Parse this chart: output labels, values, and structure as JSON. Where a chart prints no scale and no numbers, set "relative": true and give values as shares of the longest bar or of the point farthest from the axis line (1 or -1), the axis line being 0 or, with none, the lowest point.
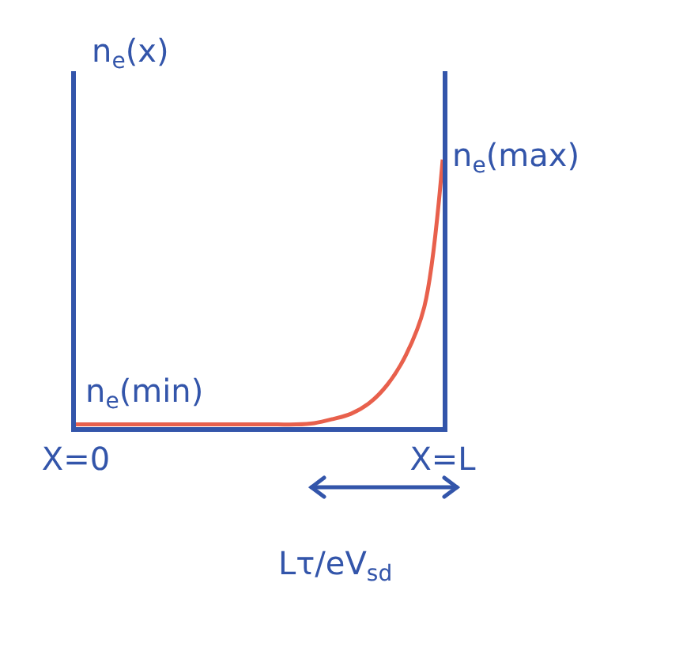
{
  "chart_data": {
    "type": "line",
    "relative": true,
    "ylabel": "n$_{e}$(x)",
    "categories": [
      "X=0",
      null,
      null,
      null,
      null,
      null,
      null,
      null,
      null,
      null,
      null,
      null,
      null,
      null,
      null,
      null,
      null,
      null,
      null,
      null,
      "X=L"
    ],
    "series": [
      {
        "color": "#e8604c",
        "values": [
          0.01,
          0.01,
          0.01,
          0.01,
          0.01,
          0.01,
          0.01,
          0.01,
          0.01,
          0.01,
          0.01,
          0.01,
          0.01,
          0.015,
          0.03,
          0.05,
          0.09,
          0.16,
          0.27,
          0.45,
          1
        ]
      }
    ],
    "annotations": [
      {
        "text": "n$_{e}$(max)",
        "x": "X=L",
        "y": 1
      },
      {
        "text": "n$_{e}$(min)",
        "x": "X=0",
        "y": 0.01
      },
      "Lτ/eV$_{sd}$"
    ],
    "grid": false,
    "legend": false,
    "marker": "none",
    "line_style": "solid"
  }
}
